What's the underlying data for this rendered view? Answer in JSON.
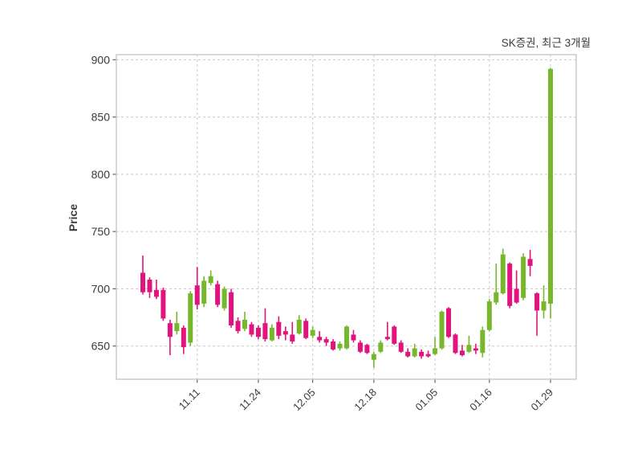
{
  "chart_data": {
    "type": "candlestick",
    "title": "SK증권, 최근 3개월",
    "ylabel": "Price",
    "xlabel": "",
    "grid": true,
    "legend_position": "none",
    "yticks": [
      650,
      700,
      750,
      800,
      850,
      900
    ],
    "ylim": [
      621,
      904.5
    ],
    "xticks": [
      {
        "label": "11.11",
        "index": 8
      },
      {
        "label": "11.24",
        "index": 17
      },
      {
        "label": "12.05",
        "index": 25
      },
      {
        "label": "12.18",
        "index": 34
      },
      {
        "label": "01.05",
        "index": 43
      },
      {
        "label": "01.16",
        "index": 51
      },
      {
        "label": "01.29",
        "index": 60
      }
    ],
    "colors": {
      "up": "#77b72b",
      "down": "#e1147d",
      "grid": "#cfcfcf",
      "border": "#c8c8c8",
      "text": "#3a3a3a"
    },
    "ohlc_order": [
      "open",
      "high",
      "low",
      "close"
    ],
    "candles": [
      [
        714,
        729,
        695,
        697
      ],
      [
        708,
        710,
        692,
        697
      ],
      [
        699,
        708,
        691,
        693
      ],
      [
        699,
        701,
        672,
        674
      ],
      [
        670,
        673,
        642,
        658
      ],
      [
        663,
        680,
        660,
        670
      ],
      [
        666,
        668,
        643,
        649
      ],
      [
        653,
        698,
        650,
        696
      ],
      [
        703,
        719,
        682,
        686
      ],
      [
        687,
        711,
        684,
        707
      ],
      [
        705,
        716,
        703,
        711
      ],
      [
        704,
        707,
        684,
        686
      ],
      [
        683,
        702,
        681,
        700
      ],
      [
        697,
        700,
        666,
        668
      ],
      [
        672,
        675,
        661,
        663
      ],
      [
        665,
        680,
        663,
        673
      ],
      [
        669,
        671,
        658,
        660
      ],
      [
        666,
        668,
        656,
        658
      ],
      [
        670,
        683,
        654,
        656
      ],
      [
        655,
        669,
        654,
        666
      ],
      [
        671,
        676,
        656,
        659
      ],
      [
        663,
        667,
        655,
        660
      ],
      [
        660,
        671,
        652,
        654
      ],
      [
        661,
        677,
        660,
        673
      ],
      [
        672,
        674,
        656,
        657
      ],
      [
        659,
        667,
        657,
        664
      ],
      [
        658,
        663,
        653,
        655
      ],
      [
        656,
        658,
        650,
        653
      ],
      [
        654,
        656,
        646,
        647
      ],
      [
        648,
        654,
        646,
        652
      ],
      [
        648,
        668,
        647,
        667
      ],
      [
        660,
        664,
        653,
        655
      ],
      [
        653,
        655,
        644,
        645
      ],
      [
        651,
        652,
        643,
        644
      ],
      [
        638,
        645,
        631,
        643
      ],
      [
        645,
        655,
        644,
        653
      ],
      [
        658,
        671,
        655,
        656
      ],
      [
        667,
        668,
        651,
        652
      ],
      [
        653,
        655,
        644,
        645
      ],
      [
        645,
        648,
        640,
        641
      ],
      [
        641,
        652,
        640,
        648
      ],
      [
        645,
        647,
        639,
        641
      ],
      [
        643,
        646,
        640,
        641
      ],
      [
        643,
        658,
        642,
        648
      ],
      [
        648,
        681,
        647,
        680
      ],
      [
        683,
        684,
        657,
        658
      ],
      [
        660,
        661,
        643,
        644
      ],
      [
        646,
        651,
        641,
        642
      ],
      [
        645,
        659,
        644,
        651
      ],
      [
        648,
        652,
        643,
        646
      ],
      [
        644,
        667,
        640,
        664
      ],
      [
        664,
        691,
        663,
        689
      ],
      [
        688,
        722,
        686,
        697
      ],
      [
        696,
        735,
        695,
        730
      ],
      [
        722,
        723,
        683,
        685
      ],
      [
        700,
        716,
        687,
        688
      ],
      [
        692,
        731,
        690,
        728
      ],
      [
        726,
        734,
        711,
        720
      ],
      [
        696,
        697,
        659,
        681
      ],
      [
        681,
        703,
        674,
        689
      ],
      [
        687,
        893,
        674,
        892
      ]
    ]
  }
}
